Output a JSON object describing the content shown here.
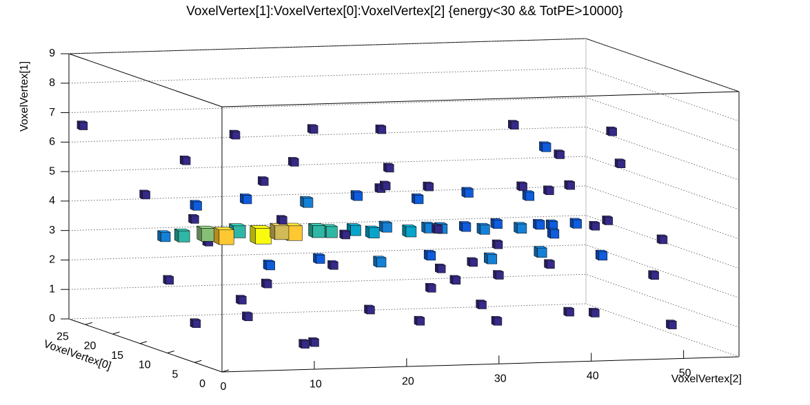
{
  "chart_data": {
    "type": "box3d",
    "title": "VoxelVertex[1]:VoxelVertex[0]:VoxelVertex[2] {energy<30 && TotPE>10000}",
    "x_label": "VoxelVertex[2]",
    "y_label": "VoxelVertex[1]",
    "z_label": "VoxelVertex[0]",
    "xlim": [
      0,
      56
    ],
    "ylim": [
      0,
      9
    ],
    "zlim": [
      0,
      28
    ],
    "xticks": [
      0,
      10,
      20,
      30,
      40,
      50
    ],
    "yticks": [
      0,
      1,
      2,
      3,
      4,
      5,
      6,
      7,
      8,
      9
    ],
    "zticks": [
      0,
      5,
      10,
      15,
      20,
      25
    ],
    "grid": true,
    "colors": [
      "#352a87",
      "#0f5cdd",
      "#1481d6",
      "#06a4ca",
      "#2eb7a4",
      "#87bf77",
      "#d1bb59",
      "#fec832",
      "#f9fb0e"
    ],
    "x": [
      1,
      3,
      8,
      12,
      15,
      18,
      22,
      25,
      28,
      30,
      33,
      36,
      40,
      44,
      47,
      50,
      52,
      54,
      5,
      9,
      14,
      19,
      24,
      27,
      31,
      35,
      38,
      42,
      46,
      49,
      53,
      2,
      6,
      11,
      16,
      20,
      26,
      29,
      34,
      39,
      43,
      48,
      51,
      4,
      10,
      17,
      23,
      32,
      37,
      45,
      1,
      3,
      5,
      7,
      9,
      11,
      13,
      15,
      17,
      19,
      21,
      23,
      25,
      27,
      29,
      31,
      33,
      35,
      37,
      39,
      41,
      43,
      45,
      47,
      49,
      10,
      16,
      22,
      28,
      34,
      40,
      46,
      8,
      14,
      20,
      26,
      32,
      38,
      44
    ],
    "y": [
      6.6,
      4.5,
      5.8,
      0.5,
      6.2,
      1.4,
      5.5,
      0.9,
      6.8,
      1.8,
      5.0,
      2.3,
      7.1,
      1.2,
      5.9,
      1.0,
      4.3,
      2.0,
      1.9,
      4.8,
      2.6,
      6.0,
      2.1,
      4.2,
      0.4,
      5.7,
      1.6,
      6.4,
      0.7,
      3.9,
      6.5,
      1.1,
      4.4,
      6.9,
      0.2,
      4.6,
      2.8,
      5.3,
      1.3,
      4.0,
      2.5,
      6.1,
      1.5,
      2.2,
      1.0,
      4.1,
      6.6,
      2.9,
      0.6,
      4.7,
      3.8,
      3.8,
      3.9,
      3.8,
      3.9,
      3.8,
      3.9,
      3.8,
      3.9,
      3.8,
      3.9,
      3.8,
      3.9,
      3.8,
      3.9,
      3.8,
      3.9,
      3.8,
      3.9,
      3.8,
      3.9,
      3.8,
      3.9,
      3.8,
      3.9,
      3.0,
      3.1,
      3.0,
      3.1,
      3.0,
      3.1,
      3.0,
      4.4,
      4.5,
      4.4,
      4.5,
      4.4,
      4.5,
      4.4
    ],
    "z": [
      27,
      10,
      20,
      5,
      12,
      22,
      8,
      15,
      18,
      3,
      25,
      10,
      14,
      6,
      20,
      2,
      24,
      12,
      18,
      4,
      26,
      2,
      20,
      6,
      16,
      4,
      24,
      9,
      14,
      2,
      18,
      8,
      24,
      16,
      10,
      26,
      1,
      11,
      19,
      5,
      22,
      8,
      26,
      3,
      12,
      6,
      22,
      8,
      12,
      16,
      12,
      12,
      11,
      11,
      12,
      11,
      11,
      12,
      11,
      12,
      11,
      11,
      12,
      11,
      11,
      12,
      11,
      11,
      12,
      11,
      11,
      12,
      11,
      11,
      12,
      8,
      9,
      8,
      9,
      8,
      9,
      8,
      18,
      19,
      18,
      19,
      18,
      19,
      18
    ],
    "values": [
      1,
      1,
      1,
      1,
      1,
      1,
      1,
      1,
      1,
      1,
      1,
      1,
      1,
      1,
      2,
      1,
      1,
      1,
      1,
      1,
      1,
      1,
      1,
      1,
      1,
      1,
      1,
      1,
      1,
      1,
      1,
      1,
      1,
      1,
      1,
      1,
      1,
      1,
      1,
      2,
      1,
      1,
      1,
      1,
      1,
      1,
      1,
      1,
      1,
      1,
      3,
      5,
      7,
      9,
      6,
      10,
      8,
      9,
      6,
      5,
      4,
      4,
      3,
      4,
      3,
      3,
      2,
      3,
      2,
      3,
      2,
      2,
      2,
      1,
      1,
      2,
      2,
      3,
      2,
      3,
      3,
      2,
      2,
      2,
      3,
      2,
      2,
      2,
      2
    ]
  }
}
